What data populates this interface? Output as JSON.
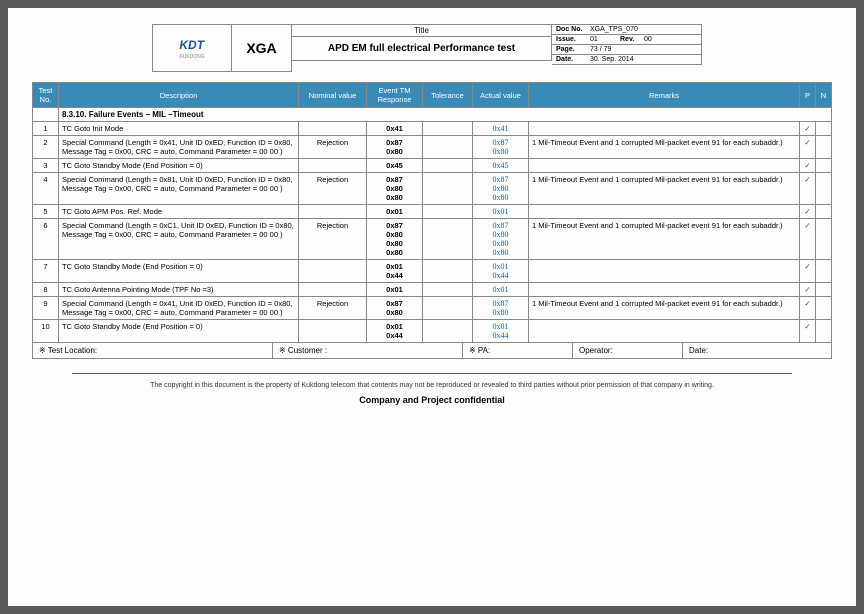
{
  "header": {
    "logo": "KDT",
    "logo_sub": "KUKDONG",
    "product": "XGA",
    "title_label": "Title",
    "title": "APD EM full electrical Performance test",
    "doc_no_label": "Doc No.",
    "doc_no": "XGA_TPS_070",
    "issue_label": "Issue.",
    "issue": "01",
    "rev_label": "Rev.",
    "rev": "00",
    "page_label": "Page.",
    "page": "73 / 79",
    "date_label": "Date.",
    "date": "30. Sep. 2014"
  },
  "columns": [
    "Test No.",
    "Description",
    "Nominal value",
    "Event TM Response",
    "Tolerance",
    "Actual value",
    "Remarks",
    "P",
    "N"
  ],
  "section": "8.3.10. Failure Events – MIL –Timeout",
  "rows": [
    {
      "no": "1",
      "desc": "TC Goto Init Mode",
      "nom": "",
      "resp": [
        "0x41"
      ],
      "actual": [
        "0x41"
      ],
      "remarks": "",
      "p": "✓"
    },
    {
      "no": "2",
      "desc": "Special Command (Length = 0x41, Unit ID 0xED, Function ID = 0x80, Message Tag = 0x00, CRC = auto, Command Parameter = 00 00 )",
      "nom": "Rejection",
      "resp": [
        "0x87",
        "0x80"
      ],
      "actual": [
        "0x87",
        "0x80"
      ],
      "remarks": "1 Mil-Timeout Event and 1 corrupted Mil-packet event 91 for each subaddr.)",
      "p": "✓"
    },
    {
      "no": "3",
      "desc": "TC Goto Standby Mode (End Position = 0)",
      "nom": "",
      "resp": [
        "0x45"
      ],
      "actual": [
        "0x45"
      ],
      "remarks": "",
      "p": "✓"
    },
    {
      "no": "4",
      "desc": "Special Command (Length = 0x81, Unit ID 0xED, Function ID = 0x80, Message Tag = 0x00, CRC = auto, Command Parameter = 00 00 )",
      "nom": "Rejection",
      "resp": [
        "0x87",
        "0x80",
        "0x80"
      ],
      "actual": [
        "0x87",
        "0x80",
        "0x80"
      ],
      "remarks": "1 Mil-Timeout Event and 1 corrupted Mil-packet event 91 for each subaddr.)",
      "p": "✓"
    },
    {
      "no": "5",
      "desc": "TC Goto APM Pos. Ref. Mode",
      "nom": "",
      "resp": [
        "0x01"
      ],
      "actual": [
        "0x01"
      ],
      "remarks": "",
      "p": "✓"
    },
    {
      "no": "6",
      "desc": "Special Command (Length = 0xC1, Unit ID 0xED, Function ID = 0x80, Message Tag = 0x00, CRC = auto, Command Parameter = 00 00 )",
      "nom": "Rejection",
      "resp": [
        "0x87",
        "0x80",
        "0x80",
        "0x80"
      ],
      "actual": [
        "0x87",
        "0x80",
        "0x80",
        "0x80"
      ],
      "remarks": "1 Mil-Timeout Event and 1 corrupted Mil-packet event 91 for each subaddr.)",
      "p": "✓"
    },
    {
      "no": "7",
      "desc": "TC Goto Standby Mode (End Position = 0)",
      "nom": "",
      "resp": [
        "0x01",
        "0x44"
      ],
      "actual": [
        "0x01",
        "0x44"
      ],
      "remarks": "",
      "p": "✓"
    },
    {
      "no": "8",
      "desc": "TC Goto Antenna Pointing Mode (TPF No =3)",
      "nom": "",
      "resp": [
        "0x01"
      ],
      "actual": [
        "0x01"
      ],
      "remarks": "",
      "p": "✓"
    },
    {
      "no": "9",
      "desc": "Special Command (Length = 0x41, Unit ID 0xED, Function ID = 0x80, Message Tag = 0x00, CRC = auto, Command Parameter = 00 00 )",
      "nom": "Rejection",
      "resp": [
        "0x87",
        "0x80"
      ],
      "actual": [
        "0x87",
        "0x80"
      ],
      "remarks": "1 Mil-Timeout Event and 1 corrupted Mil-packet event 91 for each subaddr.)",
      "p": "✓"
    },
    {
      "no": "10",
      "desc": "TC Goto Standby Mode (End Position = 0)",
      "nom": "",
      "resp": [
        "0x01",
        "0x44"
      ],
      "actual": [
        "0x01",
        "0x44"
      ],
      "remarks": "",
      "p": "✓"
    }
  ],
  "footer": {
    "test_loc_label": "※ Test Location:",
    "customer_label": "※ Customer :",
    "pa_label": "※ PA:",
    "operator_label": "Operator:",
    "date_label": "Date:"
  },
  "copyright": "The copyright in this document is the property of Kukdong telecom that contents may not be reproduced or revealed to third parties without prior permission of that company in writing.",
  "confidential": "Company and Project confidential"
}
